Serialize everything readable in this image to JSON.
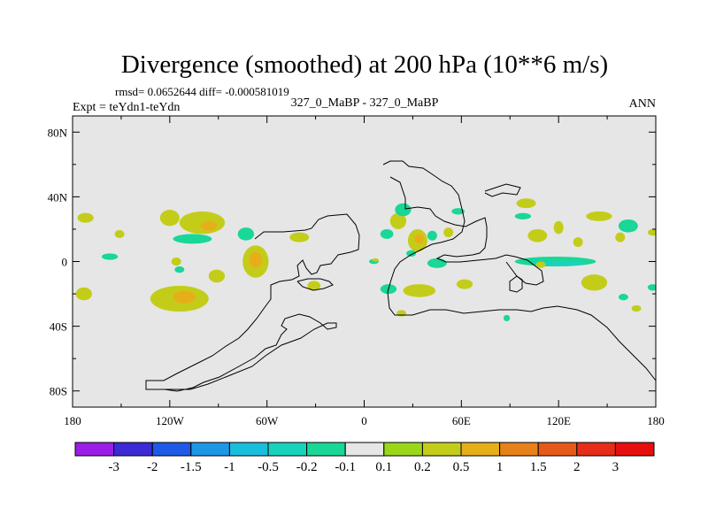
{
  "chart_data": {
    "type": "heatmap",
    "title": "Divergence (smoothed) at 200 hPa (10**6 m/s)",
    "stats_text": "rmsd= 0.0652644 diff= -0.000581019",
    "left_subtitle": "Expt = teYdn1-teYdn",
    "center_subtitle": "327_0_MaBP - 327_0_MaBP",
    "right_subtitle": "ANN",
    "projection": "cylindrical-equidistant",
    "xlim": [
      -180,
      180
    ],
    "ylim": [
      -90,
      90
    ],
    "x_ticks": [
      {
        "value": -180,
        "label": "180"
      },
      {
        "value": -120,
        "label": "120W"
      },
      {
        "value": -60,
        "label": "60W"
      },
      {
        "value": 0,
        "label": "0"
      },
      {
        "value": 60,
        "label": "60E"
      },
      {
        "value": 120,
        "label": "120E"
      },
      {
        "value": 180,
        "label": "180"
      }
    ],
    "y_ticks": [
      {
        "value": 80,
        "label": "80N"
      },
      {
        "value": 40,
        "label": "40N"
      },
      {
        "value": 0,
        "label": "0"
      },
      {
        "value": -40,
        "label": "40S"
      },
      {
        "value": -80,
        "label": "80S"
      }
    ],
    "colorbar": {
      "levels": [
        "-3",
        "-2",
        "-1.5",
        "-1",
        "-0.5",
        "-0.2",
        "-0.1",
        "0.1",
        "0.2",
        "0.5",
        "1",
        "1.5",
        "2",
        "3"
      ],
      "colors": [
        "#9a1ee6",
        "#3c2ad6",
        "#1e5ae6",
        "#1e96e6",
        "#19bedc",
        "#19d2be",
        "#19d796",
        "#e6e6e6",
        "#9bd719",
        "#c3cd19",
        "#e6af19",
        "#e68219",
        "#e65a19",
        "#e62d19",
        "#e60f0f"
      ]
    },
    "features": [
      {
        "lon": -172,
        "lat": 27,
        "rlon": 5,
        "rlat": 3,
        "level": 0.2
      },
      {
        "lon": -151,
        "lat": 17,
        "rlon": 3,
        "rlat": 2.5,
        "level": 0.2
      },
      {
        "lon": -157,
        "lat": 3,
        "rlon": 5,
        "rlat": 2,
        "level": -0.1
      },
      {
        "lon": -173,
        "lat": -20,
        "rlon": 5,
        "rlat": 4,
        "level": 0.2
      },
      {
        "lon": -120,
        "lat": 27,
        "rlon": 6,
        "rlat": 5,
        "level": 0.2
      },
      {
        "lon": -100,
        "lat": 24,
        "rlon": 14,
        "rlat": 7,
        "level": 0.2
      },
      {
        "lon": -96,
        "lat": 22,
        "rlon": 5,
        "rlat": 3,
        "level": 0.5
      },
      {
        "lon": -106,
        "lat": 14,
        "rlon": 12,
        "rlat": 3,
        "level": -0.1
      },
      {
        "lon": -67,
        "lat": 0,
        "rlon": 8,
        "rlat": 10,
        "level": 0.2
      },
      {
        "lon": -67,
        "lat": 1,
        "rlon": 4,
        "rlat": 5,
        "level": 0.5
      },
      {
        "lon": -73,
        "lat": 17,
        "rlon": 5,
        "rlat": 4,
        "level": -0.1
      },
      {
        "lon": -114,
        "lat": -23,
        "rlon": 18,
        "rlat": 8,
        "level": 0.2
      },
      {
        "lon": -111,
        "lat": -22,
        "rlon": 7,
        "rlat": 4,
        "level": 0.5
      },
      {
        "lon": -116,
        "lat": 0,
        "rlon": 3,
        "rlat": 2.5,
        "level": 0.2
      },
      {
        "lon": -114,
        "lat": -5,
        "rlon": 3,
        "rlat": 2,
        "level": -0.1
      },
      {
        "lon": -91,
        "lat": -9,
        "rlon": 5,
        "rlat": 4,
        "level": 0.2
      },
      {
        "lon": -40,
        "lat": 15,
        "rlon": 6,
        "rlat": 3,
        "level": 0.2
      },
      {
        "lon": -31,
        "lat": -15,
        "rlon": 4,
        "rlat": 3,
        "level": 0.2
      },
      {
        "lon": 6,
        "lat": 0,
        "rlon": 3,
        "rlat": 1.5,
        "level": -0.1
      },
      {
        "lon": 7,
        "lat": 1,
        "rlon": 2,
        "rlat": 1,
        "level": 0.2
      },
      {
        "lon": 14,
        "lat": 17,
        "rlon": 4,
        "rlat": 3,
        "level": -0.1
      },
      {
        "lon": 21,
        "lat": 25,
        "rlon": 5,
        "rlat": 5,
        "level": 0.2
      },
      {
        "lon": 24,
        "lat": 32,
        "rlon": 5,
        "rlat": 4,
        "level": -0.1
      },
      {
        "lon": 33,
        "lat": 13,
        "rlon": 6,
        "rlat": 7,
        "level": 0.2
      },
      {
        "lon": 34,
        "lat": 14,
        "rlon": 3,
        "rlat": 3,
        "level": 0.5
      },
      {
        "lon": 29,
        "lat": 5,
        "rlon": 3,
        "rlat": 2,
        "level": -0.1
      },
      {
        "lon": 42,
        "lat": 16,
        "rlon": 3,
        "rlat": 3,
        "level": -0.1
      },
      {
        "lon": 52,
        "lat": 18,
        "rlon": 3,
        "rlat": 3,
        "level": 0.2
      },
      {
        "lon": 45,
        "lat": -1,
        "rlon": 6,
        "rlat": 3,
        "level": -0.1
      },
      {
        "lon": 15,
        "lat": -17,
        "rlon": 5,
        "rlat": 3,
        "level": -0.1
      },
      {
        "lon": 34,
        "lat": -18,
        "rlon": 10,
        "rlat": 4,
        "level": 0.2
      },
      {
        "lon": 62,
        "lat": -14,
        "rlon": 5,
        "rlat": 3,
        "level": 0.2
      },
      {
        "lon": 23,
        "lat": -32,
        "rlon": 3,
        "rlat": 2,
        "level": 0.2
      },
      {
        "lon": 58,
        "lat": 31,
        "rlon": 4,
        "rlat": 2,
        "level": -0.1
      },
      {
        "lon": 100,
        "lat": 36,
        "rlon": 6,
        "rlat": 3,
        "level": 0.2
      },
      {
        "lon": 98,
        "lat": 28,
        "rlon": 5,
        "rlat": 2,
        "level": -0.1
      },
      {
        "lon": 107,
        "lat": 16,
        "rlon": 6,
        "rlat": 4,
        "level": 0.2
      },
      {
        "lon": 120,
        "lat": 21,
        "rlon": 3,
        "rlat": 4,
        "level": 0.2
      },
      {
        "lon": 132,
        "lat": 12,
        "rlon": 3,
        "rlat": 3,
        "level": 0.2
      },
      {
        "lon": 145,
        "lat": 28,
        "rlon": 8,
        "rlat": 3,
        "level": 0.2
      },
      {
        "lon": 163,
        "lat": 22,
        "rlon": 6,
        "rlat": 4,
        "level": -0.1
      },
      {
        "lon": 158,
        "lat": 15,
        "rlon": 3,
        "rlat": 3,
        "level": 0.2
      },
      {
        "lon": 178,
        "lat": 18,
        "rlon": 3,
        "rlat": 2,
        "level": 0.2
      },
      {
        "lon": 118,
        "lat": 0,
        "rlon": 25,
        "rlat": 3,
        "level": -0.1
      },
      {
        "lon": 120,
        "lat": -1,
        "rlon": 16,
        "rlat": 1.5,
        "level": -0.2
      },
      {
        "lon": 109,
        "lat": -2,
        "rlon": 3,
        "rlat": 2,
        "level": 0.2
      },
      {
        "lon": 142,
        "lat": -13,
        "rlon": 8,
        "rlat": 5,
        "level": 0.2
      },
      {
        "lon": 160,
        "lat": -22,
        "rlon": 3,
        "rlat": 2,
        "level": -0.1
      },
      {
        "lon": 168,
        "lat": -29,
        "rlon": 3,
        "rlat": 2,
        "level": 0.2
      },
      {
        "lon": 178,
        "lat": -16,
        "rlon": 3,
        "rlat": 2,
        "level": -0.1
      },
      {
        "lon": 88,
        "lat": -35,
        "rlon": 2,
        "rlat": 2,
        "level": -0.1
      }
    ]
  }
}
